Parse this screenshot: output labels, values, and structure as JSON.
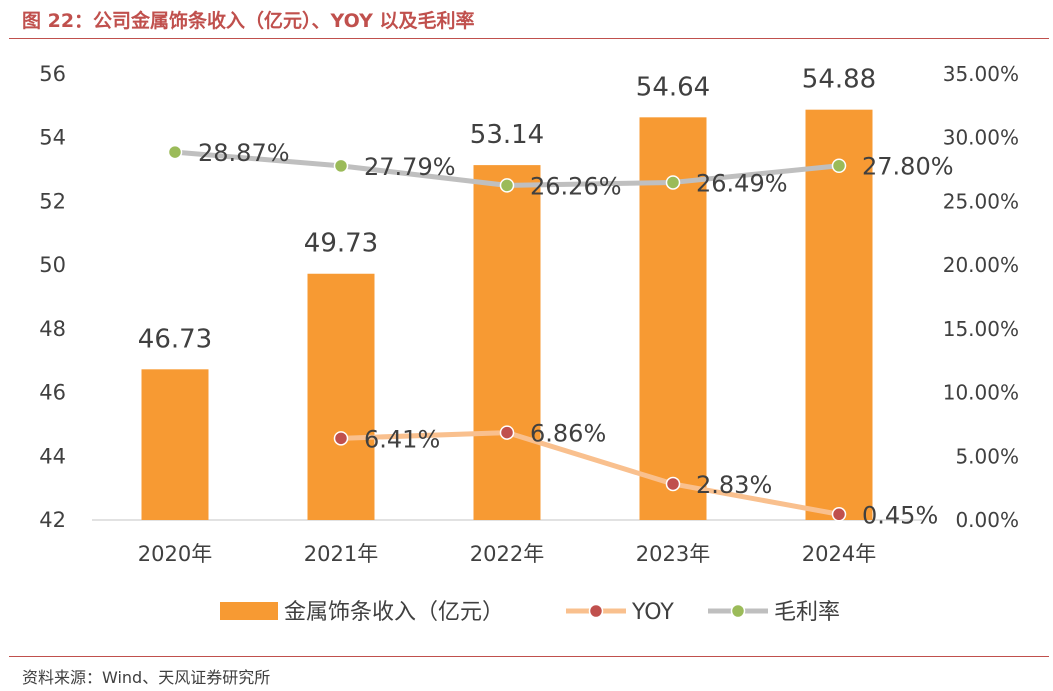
{
  "figure": {
    "title": "图 22：公司金属饰条收入（亿元）、YOY 以及毛利率",
    "source": "资料来源：Wind、天风证券研究所"
  },
  "colors": {
    "title": "#c0504d",
    "bar": "#f79a33",
    "yoy_line": "#f9c08e",
    "yoy_marker": "#c0504d",
    "margin_line": "#bfbfbf",
    "margin_marker": "#9bbb59",
    "text": "#404040"
  },
  "chart_data": {
    "type": "bar",
    "categories": [
      "2020年",
      "2021年",
      "2022年",
      "2023年",
      "2024年"
    ],
    "series": [
      {
        "name": "金属饰条收入（亿元）",
        "type": "bar",
        "axis": "left",
        "values": [
          46.73,
          49.73,
          53.14,
          54.64,
          54.88
        ],
        "labels": [
          "46.73",
          "49.73",
          "53.14",
          "54.64",
          "54.88"
        ]
      },
      {
        "name": "YOY",
        "type": "line",
        "axis": "right",
        "values": [
          null,
          6.41,
          6.86,
          2.83,
          0.45
        ],
        "labels": [
          "",
          "6.41%",
          "6.86%",
          "2.83%",
          "0.45%"
        ]
      },
      {
        "name": "毛利率",
        "type": "line",
        "axis": "right",
        "values": [
          28.87,
          27.79,
          26.26,
          26.49,
          27.8
        ],
        "labels": [
          "28.87%",
          "27.79%",
          "26.26%",
          "26.49%",
          "27.80%"
        ]
      }
    ],
    "y_left": {
      "min": 42,
      "max": 56,
      "step": 2,
      "ticks": [
        "42",
        "44",
        "46",
        "48",
        "50",
        "52",
        "54",
        "56"
      ]
    },
    "y_right": {
      "min": 0,
      "max": 35,
      "step": 5,
      "ticks": [
        "0.00%",
        "5.00%",
        "10.00%",
        "15.00%",
        "20.00%",
        "25.00%",
        "30.00%",
        "35.00%"
      ]
    },
    "grid": false,
    "legend_position": "bottom"
  }
}
